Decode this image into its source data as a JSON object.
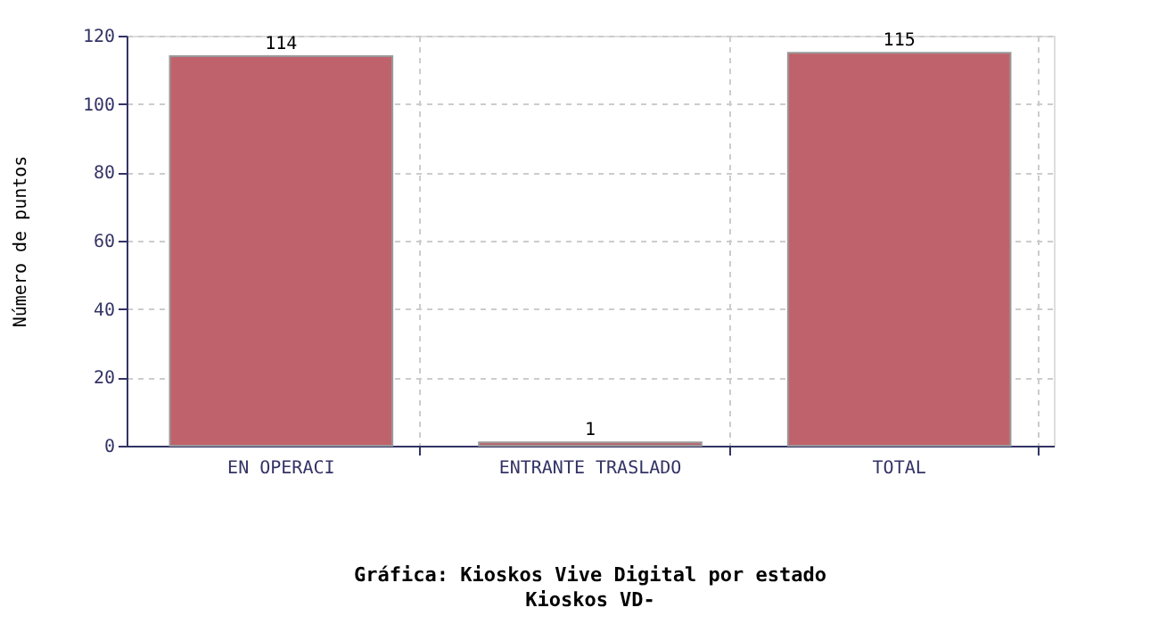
{
  "chart_data": {
    "type": "bar",
    "title": "Gráfica: Kioskos Vive Digital por estado",
    "subtitle": "Kioskos VD-",
    "ylabel": "Número de puntos",
    "categories": [
      "EN OPERACI",
      "ENTRANTE TRASLADO",
      "TOTAL"
    ],
    "values": [
      114,
      1,
      115
    ],
    "color": "#c0626b",
    "ylim": [
      0,
      120
    ],
    "yticks": [
      0,
      20,
      40,
      60,
      80,
      100,
      120
    ],
    "grid": true,
    "data_labels": true
  }
}
